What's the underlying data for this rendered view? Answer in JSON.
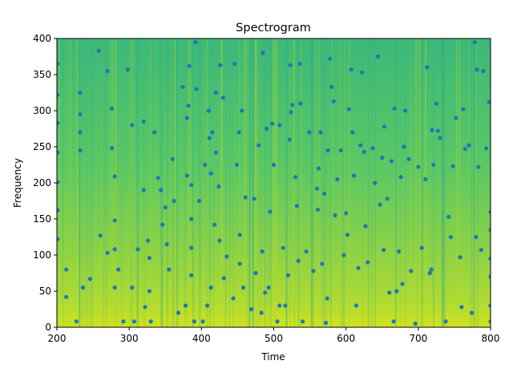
{
  "chart_data": {
    "type": "heatmap",
    "title": "Spectrogram",
    "xlabel": "Time",
    "ylabel": "Frequency",
    "xlim": [
      200,
      800
    ],
    "ylim": [
      0,
      400
    ],
    "xticks": [
      200,
      300,
      400,
      500,
      600,
      700,
      800
    ],
    "yticks": [
      0,
      50,
      100,
      150,
      200,
      250,
      300,
      350,
      400
    ],
    "colormap": [
      "#440154",
      "#3b528b",
      "#21918c",
      "#5ec962",
      "#a0da39",
      "#fde725"
    ],
    "marker_color": "#1f77b4",
    "overlay_points": [
      [
        201,
        365
      ],
      [
        201,
        322
      ],
      [
        201,
        283
      ],
      [
        201,
        242
      ],
      [
        201,
        201
      ],
      [
        201,
        162
      ],
      [
        201,
        122
      ],
      [
        213,
        80
      ],
      [
        213,
        42
      ],
      [
        227,
        8
      ],
      [
        232,
        325
      ],
      [
        232,
        295
      ],
      [
        232,
        270
      ],
      [
        232,
        245
      ],
      [
        236,
        55
      ],
      [
        246,
        67
      ],
      [
        258,
        383
      ],
      [
        260,
        127
      ],
      [
        270,
        103
      ],
      [
        270,
        355
      ],
      [
        276,
        303
      ],
      [
        276,
        248
      ],
      [
        280,
        209
      ],
      [
        280,
        148
      ],
      [
        280,
        108
      ],
      [
        280,
        55
      ],
      [
        285,
        80
      ],
      [
        292,
        8
      ],
      [
        298,
        357
      ],
      [
        304,
        280
      ],
      [
        304,
        55
      ],
      [
        307,
        8
      ],
      [
        312,
        108
      ],
      [
        320,
        190
      ],
      [
        320,
        285
      ],
      [
        322,
        28
      ],
      [
        326,
        120
      ],
      [
        328,
        96
      ],
      [
        328,
        50
      ],
      [
        330,
        8
      ],
      [
        335,
        270
      ],
      [
        340,
        207
      ],
      [
        344,
        190
      ],
      [
        346,
        142
      ],
      [
        350,
        166
      ],
      [
        352,
        115
      ],
      [
        355,
        80
      ],
      [
        360,
        233
      ],
      [
        362,
        175
      ],
      [
        368,
        20
      ],
      [
        374,
        333
      ],
      [
        378,
        30
      ],
      [
        380,
        210
      ],
      [
        380,
        290
      ],
      [
        382,
        307
      ],
      [
        383,
        362
      ],
      [
        386,
        197
      ],
      [
        386,
        150
      ],
      [
        386,
        110
      ],
      [
        386,
        72
      ],
      [
        390,
        8
      ],
      [
        392,
        395
      ],
      [
        393,
        330
      ],
      [
        397,
        175
      ],
      [
        402,
        8
      ],
      [
        405,
        225
      ],
      [
        408,
        30
      ],
      [
        410,
        300
      ],
      [
        411,
        262
      ],
      [
        413,
        55
      ],
      [
        413,
        213
      ],
      [
        415,
        270
      ],
      [
        418,
        142
      ],
      [
        420,
        325
      ],
      [
        420,
        242
      ],
      [
        424,
        195
      ],
      [
        425,
        120
      ],
      [
        426,
        363
      ],
      [
        430,
        318
      ],
      [
        431,
        68
      ],
      [
        435,
        98
      ],
      [
        444,
        40
      ],
      [
        446,
        365
      ],
      [
        449,
        225
      ],
      [
        452,
        270
      ],
      [
        453,
        88
      ],
      [
        453,
        128
      ],
      [
        456,
        300
      ],
      [
        458,
        55
      ],
      [
        461,
        180
      ],
      [
        469,
        25
      ],
      [
        473,
        178
      ],
      [
        475,
        75
      ],
      [
        479,
        252
      ],
      [
        483,
        20
      ],
      [
        484,
        105
      ],
      [
        485,
        380
      ],
      [
        488,
        48
      ],
      [
        490,
        275
      ],
      [
        493,
        55
      ],
      [
        495,
        160
      ],
      [
        498,
        282
      ],
      [
        500,
        225
      ],
      [
        505,
        8
      ],
      [
        508,
        280
      ],
      [
        508,
        30
      ],
      [
        513,
        110
      ],
      [
        516,
        30
      ],
      [
        520,
        72
      ],
      [
        522,
        260
      ],
      [
        523,
        363
      ],
      [
        524,
        298
      ],
      [
        526,
        308
      ],
      [
        530,
        208
      ],
      [
        532,
        168
      ],
      [
        534,
        92
      ],
      [
        536,
        365
      ],
      [
        537,
        310
      ],
      [
        540,
        8
      ],
      [
        545,
        105
      ],
      [
        549,
        270
      ],
      [
        555,
        78
      ],
      [
        560,
        192
      ],
      [
        561,
        163
      ],
      [
        562,
        220
      ],
      [
        565,
        270
      ],
      [
        567,
        88
      ],
      [
        570,
        185
      ],
      [
        572,
        6
      ],
      [
        574,
        40
      ],
      [
        575,
        245
      ],
      [
        578,
        372
      ],
      [
        580,
        333
      ],
      [
        583,
        313
      ],
      [
        585,
        155
      ],
      [
        588,
        205
      ],
      [
        593,
        245
      ],
      [
        597,
        100
      ],
      [
        600,
        158
      ],
      [
        602,
        128
      ],
      [
        604,
        302
      ],
      [
        607,
        357
      ],
      [
        609,
        270
      ],
      [
        611,
        210
      ],
      [
        614,
        30
      ],
      [
        617,
        82
      ],
      [
        620,
        252
      ],
      [
        622,
        353
      ],
      [
        625,
        243
      ],
      [
        627,
        140
      ],
      [
        630,
        90
      ],
      [
        637,
        248
      ],
      [
        640,
        200
      ],
      [
        644,
        375
      ],
      [
        647,
        170
      ],
      [
        650,
        235
      ],
      [
        652,
        107
      ],
      [
        653,
        278
      ],
      [
        657,
        178
      ],
      [
        660,
        48
      ],
      [
        663,
        230
      ],
      [
        666,
        8
      ],
      [
        667,
        303
      ],
      [
        670,
        50
      ],
      [
        673,
        105
      ],
      [
        676,
        208
      ],
      [
        678,
        60
      ],
      [
        680,
        250
      ],
      [
        682,
        300
      ],
      [
        687,
        233
      ],
      [
        690,
        78
      ],
      [
        696,
        5
      ],
      [
        700,
        222
      ],
      [
        705,
        110
      ],
      [
        710,
        205
      ],
      [
        712,
        360
      ],
      [
        716,
        75
      ],
      [
        718,
        80
      ],
      [
        719,
        273
      ],
      [
        721,
        225
      ],
      [
        725,
        310
      ],
      [
        727,
        272
      ],
      [
        730,
        262
      ],
      [
        738,
        8
      ],
      [
        742,
        153
      ],
      [
        745,
        125
      ],
      [
        748,
        223
      ],
      [
        752,
        290
      ],
      [
        758,
        97
      ],
      [
        760,
        28
      ],
      [
        762,
        302
      ],
      [
        765,
        247
      ],
      [
        770,
        252
      ],
      [
        774,
        20
      ],
      [
        778,
        395
      ],
      [
        780,
        125
      ],
      [
        781,
        357
      ],
      [
        783,
        222
      ],
      [
        787,
        107
      ],
      [
        790,
        355
      ],
      [
        794,
        248
      ],
      [
        798,
        312
      ],
      [
        800,
        160
      ],
      [
        800,
        135
      ],
      [
        800,
        95
      ],
      [
        800,
        70
      ],
      [
        800,
        30
      ],
      [
        800,
        8
      ]
    ]
  }
}
